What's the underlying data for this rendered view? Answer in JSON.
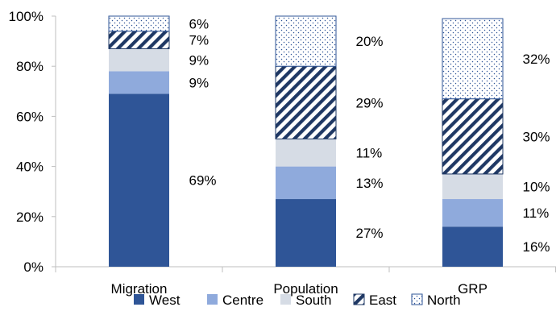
{
  "chart_data": {
    "type": "bar",
    "stacked": true,
    "normalized": true,
    "categories": [
      "Migration",
      "Population",
      "GRP"
    ],
    "series": [
      {
        "name": "West",
        "values": [
          69,
          27,
          16
        ],
        "labels": [
          "69%",
          "27%",
          "16%"
        ],
        "color": "#2f5597",
        "pattern": "solid"
      },
      {
        "name": "Centre",
        "values": [
          9,
          13,
          11
        ],
        "labels": [
          "9%",
          "13%",
          "11%"
        ],
        "color": "#8faadc",
        "pattern": "solid"
      },
      {
        "name": "South",
        "values": [
          9,
          11,
          10
        ],
        "labels": [
          "9%",
          "11%",
          "10%"
        ],
        "color": "#d6dce5",
        "pattern": "solid"
      },
      {
        "name": "East",
        "values": [
          7,
          29,
          30
        ],
        "labels": [
          "7%",
          "29%",
          "30%"
        ],
        "color": "#1f3864",
        "pattern": "diagonal-stripes"
      },
      {
        "name": "North",
        "values": [
          6,
          20,
          32
        ],
        "labels": [
          "6%",
          "20%",
          "32%"
        ],
        "color": "#2f5597",
        "pattern": "dots"
      }
    ],
    "y_ticks": [
      "0%",
      "20%",
      "40%",
      "60%",
      "80%",
      "100%"
    ],
    "ylim": [
      0,
      100
    ],
    "legend_position": "bottom",
    "grid": false,
    "title": "",
    "xlabel": "",
    "ylabel": ""
  }
}
